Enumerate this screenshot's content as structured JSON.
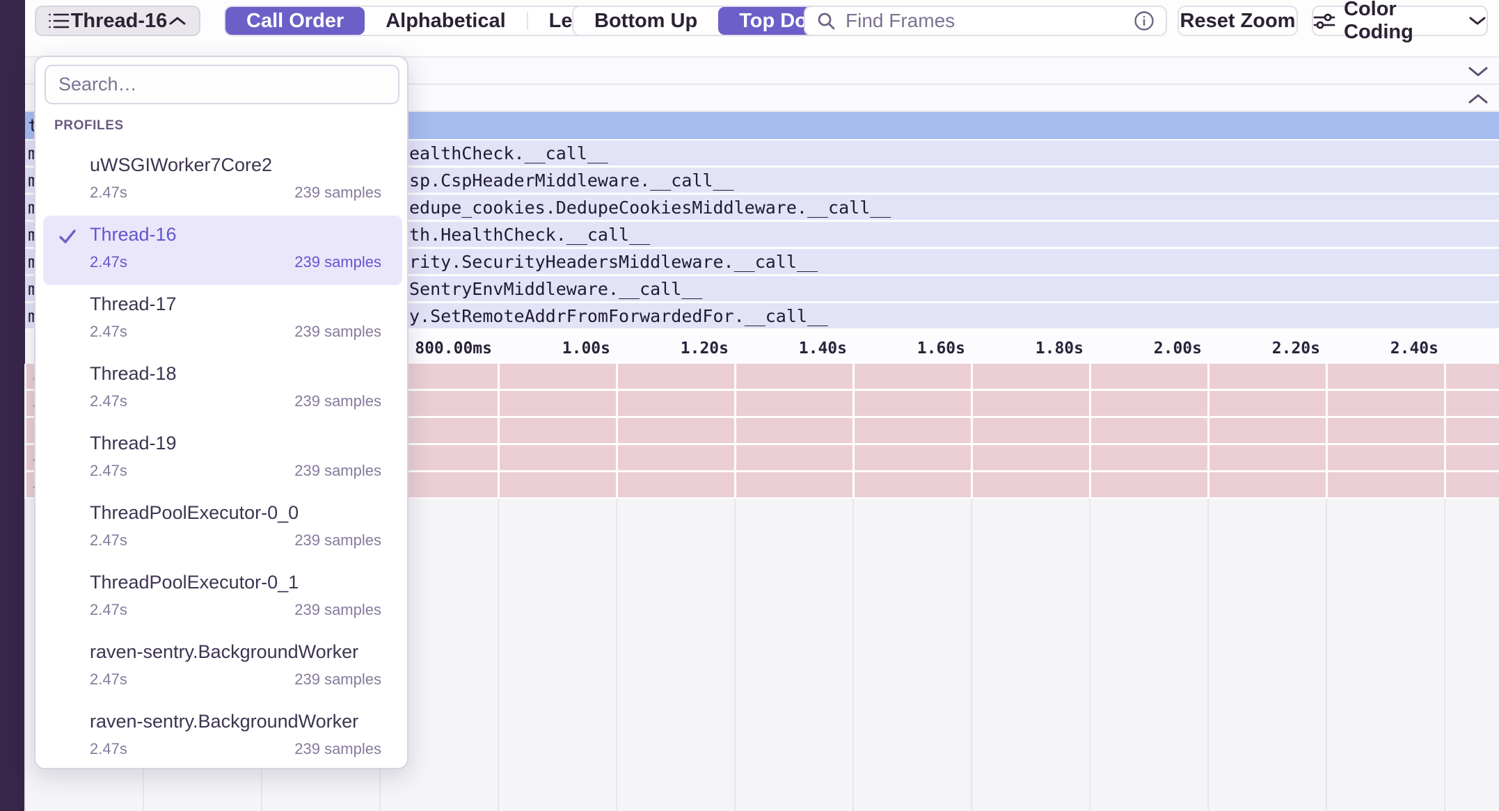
{
  "colors": {
    "accent": "#6C5FC8",
    "sidebar_strip": "#38254A",
    "selected_row_blue": "#A6BCEF",
    "frame_lavender": "#E2E3F7",
    "frame_pink": "#EBCED4",
    "panel_highlight": "#EBE7FB"
  },
  "toolbar": {
    "thread_selector": {
      "label": "Thread-16",
      "icon": "list-icon",
      "chevron": "up"
    },
    "sort_segments": {
      "options": [
        "Call Order",
        "Alphabetical",
        "Left Heavy"
      ],
      "selected": "Call Order"
    },
    "direction_segments": {
      "options": [
        "Bottom Up",
        "Top Down"
      ],
      "selected": "Top Down"
    },
    "find_frames": {
      "placeholder": "Find Frames",
      "icon": "search-icon",
      "trailing_icon": "info-icon"
    },
    "reset_zoom_label": "Reset Zoom",
    "color_coding": {
      "label": "Color Coding",
      "icon": "sliders-icon",
      "chevron": "down"
    }
  },
  "profiles_dropdown": {
    "search_placeholder": "Search…",
    "section_label": "PROFILES",
    "items": [
      {
        "name": "uWSGIWorker7Core2",
        "duration": "2.47s",
        "samples": "239 samples",
        "selected": false
      },
      {
        "name": "Thread-16",
        "duration": "2.47s",
        "samples": "239 samples",
        "selected": true
      },
      {
        "name": "Thread-17",
        "duration": "2.47s",
        "samples": "239 samples",
        "selected": false
      },
      {
        "name": "Thread-18",
        "duration": "2.47s",
        "samples": "239 samples",
        "selected": false
      },
      {
        "name": "Thread-19",
        "duration": "2.47s",
        "samples": "239 samples",
        "selected": false
      },
      {
        "name": "ThreadPoolExecutor-0_0",
        "duration": "2.47s",
        "samples": "239 samples",
        "selected": false
      },
      {
        "name": "ThreadPoolExecutor-0_1",
        "duration": "2.47s",
        "samples": "239 samples",
        "selected": false
      },
      {
        "name": "raven-sentry.BackgroundWorker",
        "duration": "2.47s",
        "samples": "239 samples",
        "selected": false
      },
      {
        "name": "raven-sentry.BackgroundWorker",
        "duration": "2.47s",
        "samples": "239 samples",
        "selected": false
      }
    ]
  },
  "flame_chart": {
    "selected_row_fragment": "t",
    "frame_rows": [
      {
        "fragment": "m",
        "label": "ealthCheck.__call__"
      },
      {
        "fragment": "m",
        "label": "sp.CspHeaderMiddleware.__call__"
      },
      {
        "fragment": "m",
        "label": "edupe_cookies.DedupeCookiesMiddleware.__call__"
      },
      {
        "fragment": "m",
        "label": "th.HealthCheck.__call__"
      },
      {
        "fragment": "m",
        "label": "rity.SecurityHeadersMiddleware.__call__"
      },
      {
        "fragment": "m",
        "label": "SentryEnvMiddleware.__call__"
      },
      {
        "fragment": "m",
        "label": "y.SetRemoteAddrFromForwardedFor.__call__"
      }
    ],
    "time_axis_ticks": [
      "800.00ms",
      "1.00s",
      "1.20s",
      "1.40s",
      "1.60s",
      "1.80s",
      "2.00s",
      "2.20s",
      "2.40s"
    ],
    "pink_row_fragments": [
      "-",
      "-",
      "|",
      "-",
      "-"
    ]
  }
}
